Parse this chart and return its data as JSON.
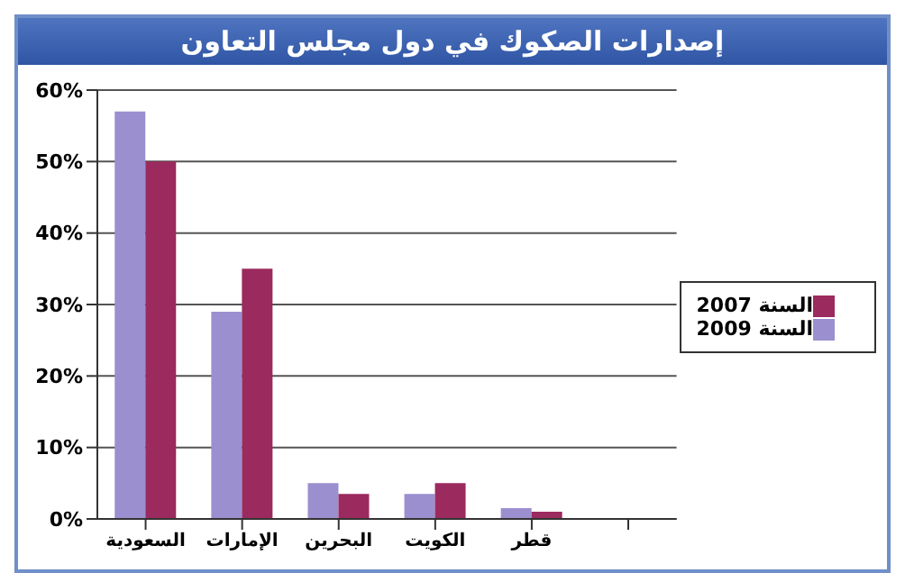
{
  "chart_data": {
    "type": "bar",
    "title": "إصدارات الصكوك في دول مجلس التعاون",
    "categories": [
      "السعودية",
      "الإمارات",
      "البحرين",
      "الكويت",
      "قطر",
      null
    ],
    "series": [
      {
        "name": "السنة 2009",
        "color": "#9b8fd0",
        "values": [
          57,
          29,
          5,
          3.5,
          1.5,
          null
        ]
      },
      {
        "name": "السنة 2007",
        "color": "#9b2a5e",
        "values": [
          50,
          35,
          3.5,
          5,
          1,
          null
        ]
      }
    ],
    "ylim": [
      0,
      60
    ],
    "yticks": [
      {
        "value": 0,
        "label": "0%"
      },
      {
        "value": 10,
        "label": "10%"
      },
      {
        "value": 20,
        "label": "20%"
      },
      {
        "value": 30,
        "label": "30%"
      },
      {
        "value": 40,
        "label": "40%"
      },
      {
        "value": 50,
        "label": "50%"
      },
      {
        "value": 60,
        "label": "60%"
      }
    ],
    "grid": "y",
    "legend": "right"
  }
}
